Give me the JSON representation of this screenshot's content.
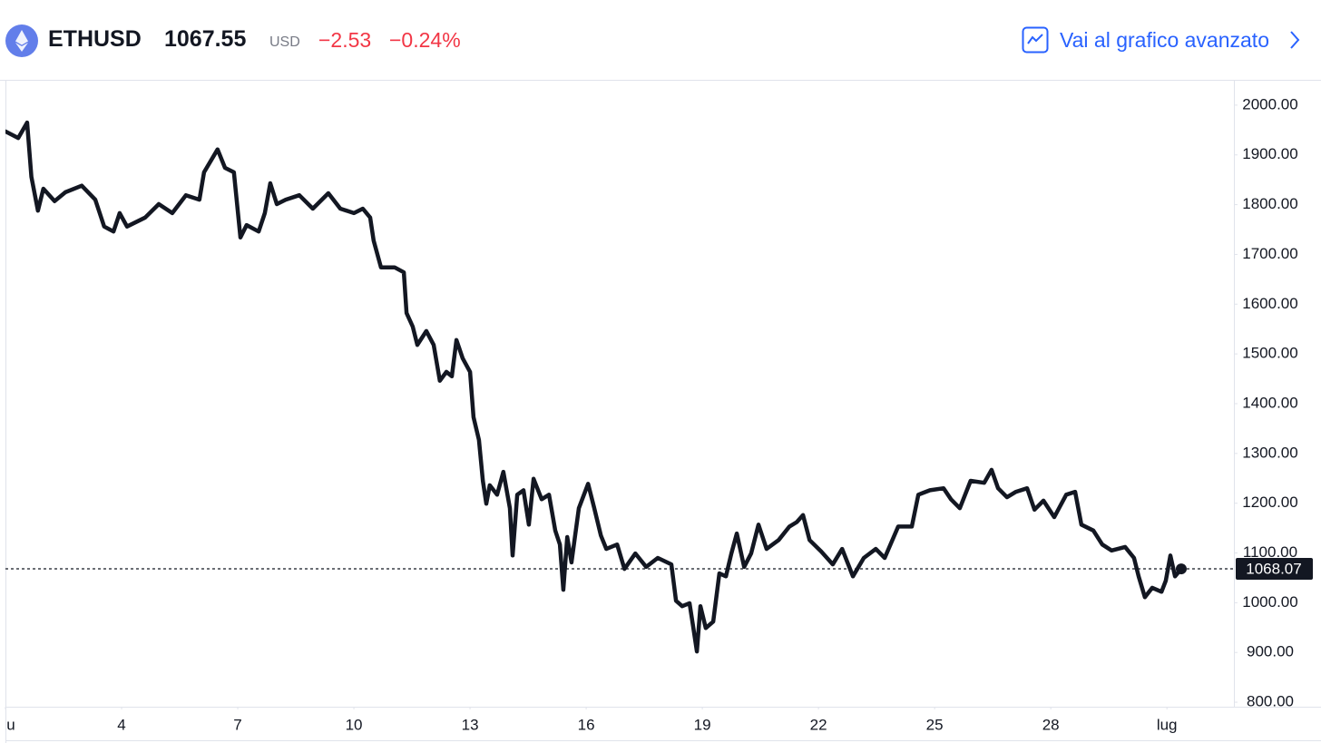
{
  "header": {
    "symbol": "ETHUSD",
    "price": "1067.55",
    "currency": "USD",
    "change": "−2.53",
    "change_percent": "−0.24%",
    "link": "Vai al grafico avanzato"
  },
  "chart_data": {
    "type": "line",
    "x": [
      1,
      1.33,
      1.56,
      1.67,
      1.84,
      1.98,
      2.27,
      2.55,
      2.97,
      3.32,
      3.55,
      3.79,
      3.95,
      4.14,
      4.61,
      4.96,
      5.31,
      5.66,
      6.01,
      6.13,
      6.48,
      6.67,
      6.9,
      7.07,
      7.23,
      7.54,
      7.7,
      7.84,
      8.01,
      8.24,
      8.59,
      8.94,
      9.34,
      9.65,
      10,
      10.23,
      10.42,
      10.51,
      10.7,
      11.05,
      11.29,
      11.36,
      11.52,
      11.64,
      11.87,
      12.06,
      12.22,
      12.39,
      12.53,
      12.65,
      12.81,
      13,
      13.09,
      13.23,
      13.33,
      13.42,
      13.51,
      13.7,
      13.86,
      14.03,
      14.1,
      14.22,
      14.38,
      14.52,
      14.64,
      14.85,
      15.04,
      15.2,
      15.32,
      15.41,
      15.51,
      15.62,
      15.81,
      16.05,
      16.21,
      16.38,
      16.52,
      16.8,
      16.99,
      17.27,
      17.55,
      17.85,
      18.2,
      18.32,
      18.48,
      18.67,
      18.76,
      18.86,
      18.95,
      19.09,
      19.28,
      19.44,
      19.61,
      19.75,
      19.89,
      20.08,
      20.26,
      20.45,
      20.66,
      20.97,
      21.25,
      21.44,
      21.6,
      21.77,
      22.07,
      22.37,
      22.61,
      22.89,
      23.17,
      23.48,
      23.71,
      24.06,
      24.41,
      24.58,
      24.88,
      25.23,
      25.42,
      25.65,
      25.93,
      26.28,
      26.47,
      26.64,
      26.87,
      27.1,
      27.39,
      27.58,
      27.81,
      28.09,
      28.4,
      28.63,
      28.79,
      29.1,
      29.33,
      29.57,
      29.92,
      30.15,
      30.27,
      30.43,
      30.62,
      30.86,
      30.97,
      31.09,
      31.21,
      31.37
    ],
    "series": [
      {
        "color": "#131722",
        "values": [
          1947,
          1934,
          1965,
          1856,
          1788,
          1832,
          1807,
          1825,
          1838,
          1810,
          1756,
          1746,
          1783,
          1756,
          1774,
          1801,
          1783,
          1819,
          1810,
          1865,
          1911,
          1874,
          1865,
          1734,
          1759,
          1746,
          1783,
          1843,
          1801,
          1810,
          1819,
          1792,
          1823,
          1792,
          1783,
          1792,
          1774,
          1728,
          1674,
          1674,
          1664,
          1582,
          1555,
          1518,
          1546,
          1518,
          1446,
          1464,
          1455,
          1528,
          1491,
          1464,
          1373,
          1327,
          1245,
          1199,
          1236,
          1217,
          1263,
          1190,
          1095,
          1217,
          1226,
          1157,
          1249,
          1208,
          1217,
          1145,
          1117,
          1026,
          1132,
          1081,
          1190,
          1239,
          1190,
          1135,
          1108,
          1117,
          1068,
          1099,
          1072,
          1090,
          1077,
          1004,
          993,
          999,
          953,
          902,
          993,
          949,
          962,
          1059,
          1053,
          1099,
          1139,
          1072,
          1099,
          1157,
          1108,
          1126,
          1153,
          1162,
          1176,
          1126,
          1103,
          1077,
          1108,
          1053,
          1090,
          1108,
          1090,
          1153,
          1153,
          1217,
          1226,
          1230,
          1208,
          1190,
          1245,
          1241,
          1267,
          1230,
          1212,
          1223,
          1230,
          1187,
          1205,
          1172,
          1217,
          1223,
          1157,
          1145,
          1117,
          1105,
          1112,
          1090,
          1053,
          1011,
          1030,
          1022,
          1044,
          1095,
          1053,
          1068
        ]
      }
    ],
    "xlim": [
      1,
      32.73
    ],
    "xticks": [
      {
        "value": 1,
        "label": "u"
      },
      4,
      7,
      10,
      13,
      16,
      19,
      22,
      25,
      28,
      {
        "value": 31,
        "label": "lug"
      }
    ],
    "ylim": [
      791,
      2049
    ],
    "yticks": [
      {
        "value": 800,
        "label": "800.00"
      },
      {
        "value": 900,
        "label": "900.00"
      },
      {
        "value": 1000,
        "label": "1000.00"
      },
      {
        "value": 1100,
        "label": "1100.00"
      },
      {
        "value": 1200,
        "label": "1200.00"
      },
      {
        "value": 1300,
        "label": "1300.00"
      },
      {
        "value": 1400,
        "label": "1400.00"
      },
      {
        "value": 1500,
        "label": "1500.00"
      },
      {
        "value": 1600,
        "label": "1600.00"
      },
      {
        "value": 1700,
        "label": "1700.00"
      },
      {
        "value": 1800,
        "label": "1800.00"
      },
      {
        "value": 1900,
        "label": "1900.00"
      },
      {
        "value": 2000,
        "label": "2000.00"
      }
    ],
    "grid": false,
    "price_line": 1068.07
  }
}
